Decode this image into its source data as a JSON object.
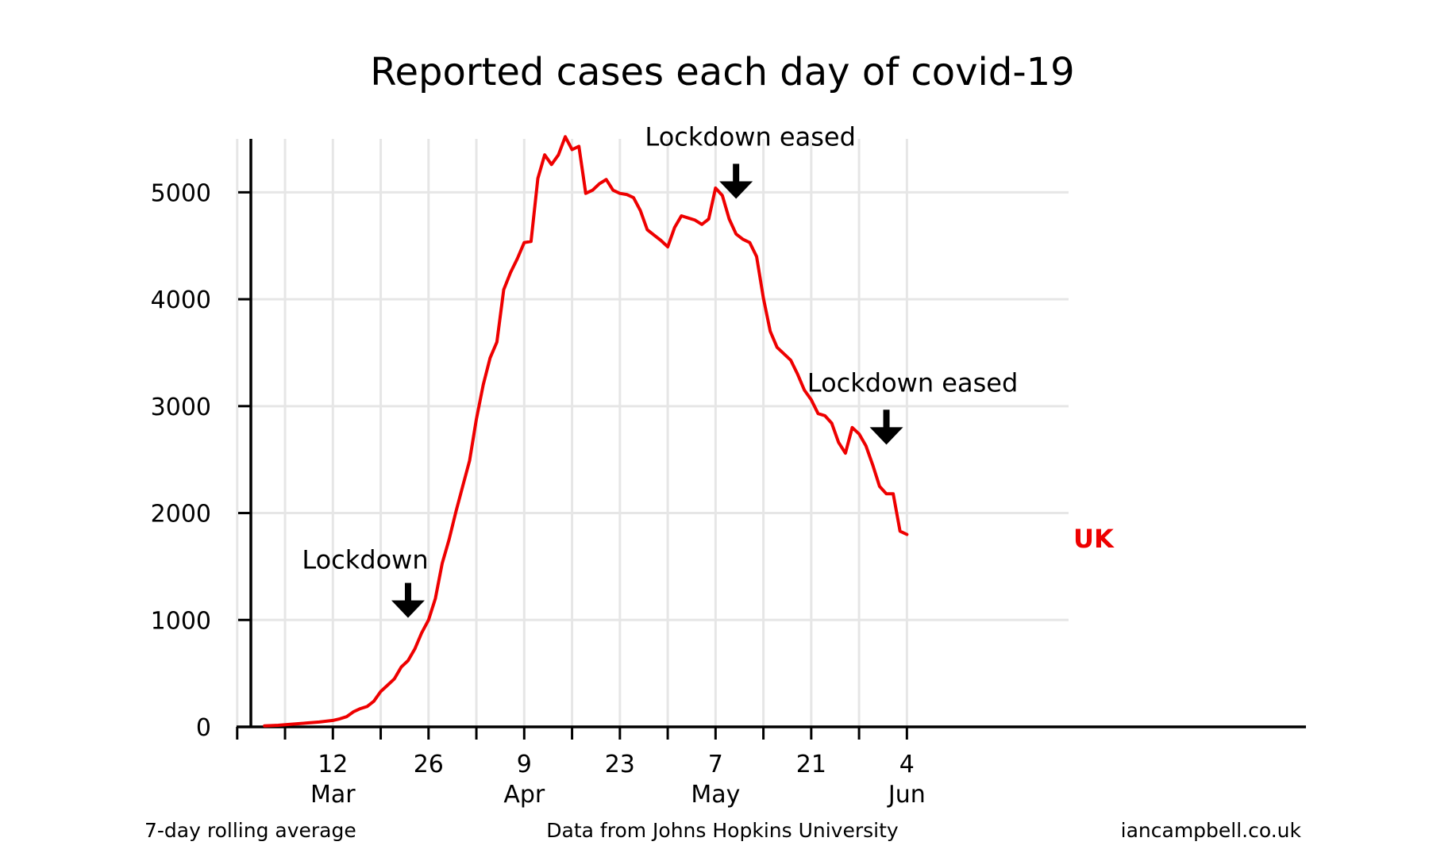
{
  "chart_data": {
    "type": "line",
    "title": "Reported cases each day of covid-19",
    "xlabel": "",
    "ylabel": "",
    "ylim": [
      0,
      5500
    ],
    "yticks": [
      0,
      1000,
      2000,
      3000,
      4000,
      5000
    ],
    "grid": true,
    "x_axis": {
      "start_date": "2020-02-29",
      "end_date": "2020-07-31",
      "tick_dates": [
        "2020-03-12",
        "2020-03-26",
        "2020-04-09",
        "2020-04-23",
        "2020-05-07",
        "2020-05-21",
        "2020-06-04"
      ],
      "extra_grid_dates": [
        "2020-02-27",
        "2020-03-05",
        "2020-03-19",
        "2020-04-02",
        "2020-04-16",
        "2020-04-30",
        "2020-05-14",
        "2020-05-28"
      ],
      "tick_labels": [
        {
          "day": "12",
          "month": "Mar"
        },
        {
          "day": "26",
          "month": ""
        },
        {
          "day": "9",
          "month": "Apr"
        },
        {
          "day": "23",
          "month": ""
        },
        {
          "day": "7",
          "month": "May"
        },
        {
          "day": "21",
          "month": ""
        },
        {
          "day": "4",
          "month": "Jun"
        }
      ]
    },
    "series": [
      {
        "name": "UK",
        "color": "#ee0000",
        "points": [
          [
            "2020-03-02",
            10
          ],
          [
            "2020-03-04",
            15
          ],
          [
            "2020-03-06",
            25
          ],
          [
            "2020-03-08",
            35
          ],
          [
            "2020-03-10",
            45
          ],
          [
            "2020-03-12",
            60
          ],
          [
            "2020-03-13",
            75
          ],
          [
            "2020-03-14",
            95
          ],
          [
            "2020-03-15",
            140
          ],
          [
            "2020-03-16",
            170
          ],
          [
            "2020-03-17",
            190
          ],
          [
            "2020-03-18",
            240
          ],
          [
            "2020-03-19",
            330
          ],
          [
            "2020-03-20",
            390
          ],
          [
            "2020-03-21",
            450
          ],
          [
            "2020-03-22",
            560
          ],
          [
            "2020-03-23",
            620
          ],
          [
            "2020-03-24",
            730
          ],
          [
            "2020-03-25",
            880
          ],
          [
            "2020-03-26",
            1000
          ],
          [
            "2020-03-27",
            1200
          ],
          [
            "2020-03-28",
            1530
          ],
          [
            "2020-03-29",
            1750
          ],
          [
            "2020-03-30",
            2010
          ],
          [
            "2020-03-31",
            2250
          ],
          [
            "2020-04-01",
            2490
          ],
          [
            "2020-04-02",
            2880
          ],
          [
            "2020-04-03",
            3200
          ],
          [
            "2020-04-04",
            3450
          ],
          [
            "2020-04-05",
            3600
          ],
          [
            "2020-04-06",
            4090
          ],
          [
            "2020-04-07",
            4250
          ],
          [
            "2020-04-08",
            4380
          ],
          [
            "2020-04-09",
            4530
          ],
          [
            "2020-04-10",
            4540
          ],
          [
            "2020-04-11",
            5130
          ],
          [
            "2020-04-12",
            5350
          ],
          [
            "2020-04-13",
            5260
          ],
          [
            "2020-04-14",
            5350
          ],
          [
            "2020-04-15",
            5520
          ],
          [
            "2020-04-16",
            5400
          ],
          [
            "2020-04-17",
            5430
          ],
          [
            "2020-04-18",
            4990
          ],
          [
            "2020-04-19",
            5020
          ],
          [
            "2020-04-20",
            5080
          ],
          [
            "2020-04-21",
            5120
          ],
          [
            "2020-04-22",
            5020
          ],
          [
            "2020-04-23",
            4990
          ],
          [
            "2020-04-24",
            4980
          ],
          [
            "2020-04-25",
            4950
          ],
          [
            "2020-04-26",
            4830
          ],
          [
            "2020-04-27",
            4650
          ],
          [
            "2020-04-28",
            4600
          ],
          [
            "2020-04-29",
            4550
          ],
          [
            "2020-04-30",
            4490
          ],
          [
            "2020-05-01",
            4670
          ],
          [
            "2020-05-02",
            4780
          ],
          [
            "2020-05-03",
            4760
          ],
          [
            "2020-05-04",
            4740
          ],
          [
            "2020-05-05",
            4700
          ],
          [
            "2020-05-06",
            4750
          ],
          [
            "2020-05-07",
            5040
          ],
          [
            "2020-05-08",
            4970
          ],
          [
            "2020-05-09",
            4750
          ],
          [
            "2020-05-10",
            4610
          ],
          [
            "2020-05-11",
            4560
          ],
          [
            "2020-05-12",
            4530
          ],
          [
            "2020-05-13",
            4400
          ],
          [
            "2020-05-14",
            4010
          ],
          [
            "2020-05-15",
            3700
          ],
          [
            "2020-05-16",
            3550
          ],
          [
            "2020-05-17",
            3490
          ],
          [
            "2020-05-18",
            3430
          ],
          [
            "2020-05-19",
            3300
          ],
          [
            "2020-05-20",
            3150
          ],
          [
            "2020-05-21",
            3060
          ],
          [
            "2020-05-22",
            2930
          ],
          [
            "2020-05-23",
            2910
          ],
          [
            "2020-05-24",
            2840
          ],
          [
            "2020-05-25",
            2660
          ],
          [
            "2020-05-26",
            2560
          ],
          [
            "2020-05-27",
            2800
          ],
          [
            "2020-05-28",
            2740
          ],
          [
            "2020-05-29",
            2630
          ],
          [
            "2020-05-30",
            2450
          ],
          [
            "2020-05-31",
            2250
          ],
          [
            "2020-06-01",
            2180
          ],
          [
            "2020-06-02",
            2180
          ],
          [
            "2020-06-03",
            1830
          ],
          [
            "2020-06-04",
            1800
          ]
        ]
      }
    ],
    "annotations": [
      {
        "text": "Lockdown",
        "date": "2020-03-23",
        "arrow_value": 1020
      },
      {
        "text": "Lockdown eased",
        "date": "2020-05-10",
        "arrow_value": 4940
      },
      {
        "text": "Lockdown eased",
        "date": "2020-06-01",
        "arrow_value": 2640
      }
    ],
    "series_label": "UK",
    "footer": {
      "left": "7-day rolling average",
      "center": "Data from Johns Hopkins University",
      "right": "iancampbell.co.uk"
    }
  }
}
